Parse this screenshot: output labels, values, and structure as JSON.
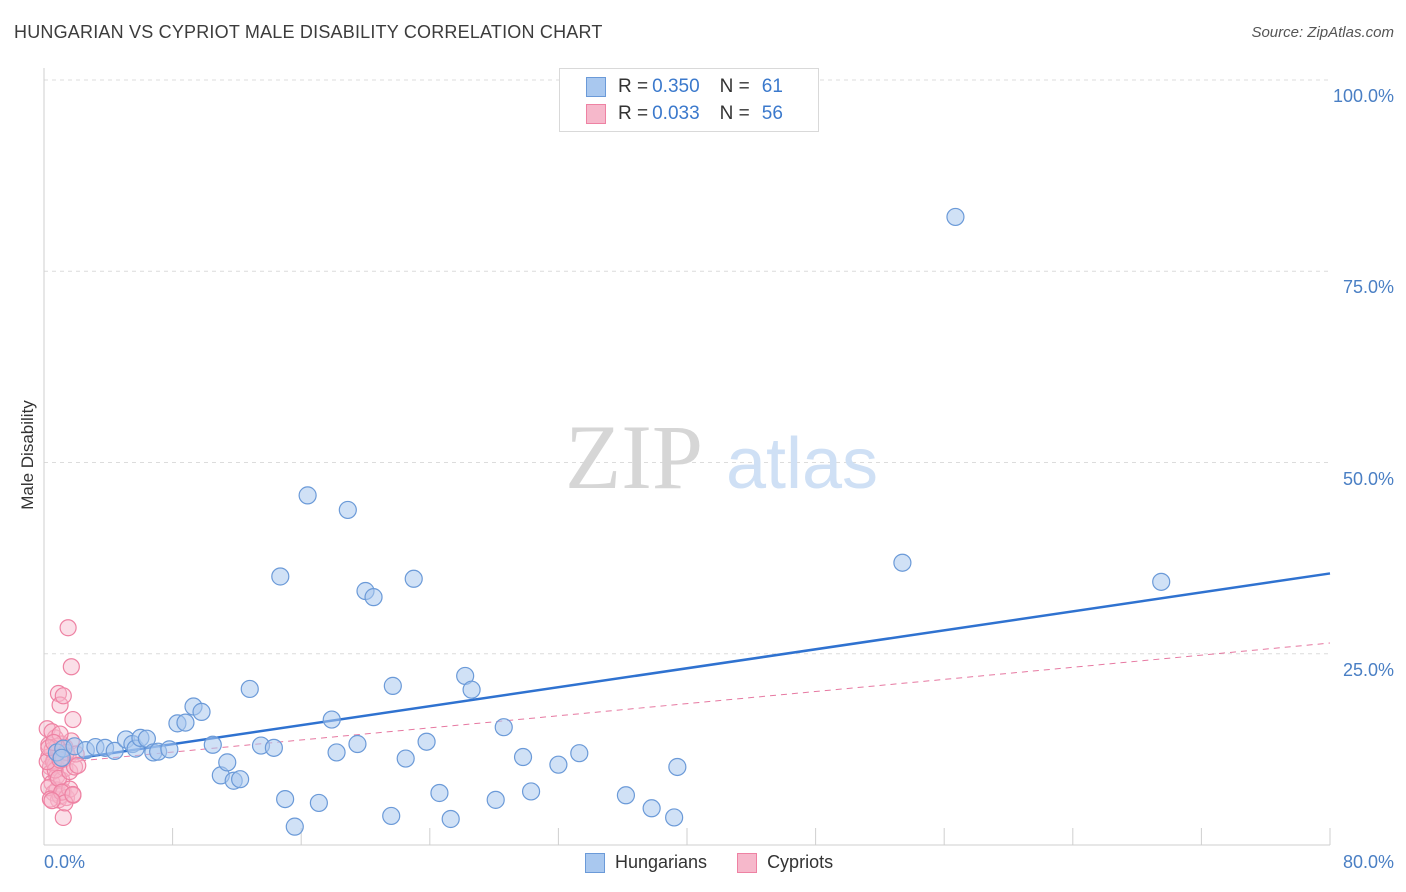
{
  "title": "HUNGARIAN VS CYPRIOT MALE DISABILITY CORRELATION CHART",
  "source": "Source: ZipAtlas.com",
  "watermark": {
    "zip": "ZIP",
    "atlas": "atlas"
  },
  "colors": {
    "blue_fill": "#a9c8ef",
    "blue_stroke": "#6b9ad8",
    "blue_line": "#2f72d0",
    "pink_fill": "#f6b8cb",
    "pink_stroke": "#ee82a3",
    "pink_line": "#e0578a",
    "axis_text": "#4a7fc4"
  },
  "legend": {
    "rows": [
      {
        "r_label": "R = ",
        "r_value": "0.350",
        "n_label": "N = ",
        "n_value": "61"
      },
      {
        "r_label": "R = ",
        "r_value": "0.033",
        "n_label": "N = ",
        "n_value": "56"
      }
    ]
  },
  "bottom_legend": [
    "Hungarians",
    "Cypriots"
  ],
  "chart_data": {
    "type": "scatter",
    "title": "HUNGARIAN VS CYPRIOT MALE DISABILITY CORRELATION CHART",
    "xlabel": "",
    "ylabel": "Male Disability",
    "xlim": [
      0,
      80
    ],
    "ylim": [
      0,
      100
    ],
    "x_tick_labels": [
      "0.0%",
      "80.0%"
    ],
    "y_tick_labels": [
      "100.0%",
      "75.0%",
      "50.0%",
      "25.0%"
    ],
    "y_tick_values": [
      100,
      75,
      50,
      25
    ],
    "grid": true,
    "legend_position": "top-center",
    "series": [
      {
        "name": "Hungarians",
        "r": 0.35,
        "n": 61,
        "trend": {
          "x": [
            0.3,
            80
          ],
          "y": [
            10.8,
            35.5
          ],
          "style": "solid"
        },
        "points": [
          [
            0.8,
            12.1
          ],
          [
            1.2,
            12.6
          ],
          [
            1.9,
            12.9
          ],
          [
            2.6,
            12.4
          ],
          [
            3.2,
            12.8
          ],
          [
            3.8,
            12.7
          ],
          [
            4.4,
            12.3
          ],
          [
            5.1,
            13.8
          ],
          [
            5.5,
            13.2
          ],
          [
            5.7,
            12.6
          ],
          [
            6.0,
            14.0
          ],
          [
            6.4,
            13.9
          ],
          [
            6.8,
            12.1
          ],
          [
            7.1,
            12.2
          ],
          [
            7.8,
            12.5
          ],
          [
            8.3,
            15.9
          ],
          [
            8.8,
            16.0
          ],
          [
            9.3,
            18.1
          ],
          [
            9.8,
            17.4
          ],
          [
            10.5,
            13.1
          ],
          [
            11.0,
            9.1
          ],
          [
            11.4,
            10.8
          ],
          [
            11.8,
            8.4
          ],
          [
            12.2,
            8.6
          ],
          [
            12.8,
            20.4
          ],
          [
            13.5,
            13.0
          ],
          [
            14.3,
            12.7
          ],
          [
            14.7,
            35.1
          ],
          [
            15.0,
            6.0
          ],
          [
            15.6,
            2.4
          ],
          [
            16.4,
            45.7
          ],
          [
            17.1,
            5.5
          ],
          [
            17.9,
            16.4
          ],
          [
            18.2,
            12.1
          ],
          [
            18.9,
            43.8
          ],
          [
            19.5,
            13.2
          ],
          [
            20.0,
            33.2
          ],
          [
            20.5,
            32.4
          ],
          [
            21.6,
            3.8
          ],
          [
            21.7,
            20.8
          ],
          [
            22.5,
            11.3
          ],
          [
            23.0,
            34.8
          ],
          [
            23.8,
            13.5
          ],
          [
            24.6,
            6.8
          ],
          [
            25.3,
            3.4
          ],
          [
            26.2,
            22.1
          ],
          [
            26.6,
            20.3
          ],
          [
            28.1,
            5.9
          ],
          [
            28.6,
            15.4
          ],
          [
            29.8,
            11.5
          ],
          [
            30.3,
            7.0
          ],
          [
            32.0,
            10.5
          ],
          [
            33.3,
            12.0
          ],
          [
            36.2,
            6.5
          ],
          [
            37.8,
            4.8
          ],
          [
            39.2,
            3.6
          ],
          [
            39.4,
            10.2
          ],
          [
            53.4,
            36.9
          ],
          [
            56.7,
            82.1
          ],
          [
            69.5,
            34.4
          ],
          [
            1.1,
            11.4
          ]
        ]
      },
      {
        "name": "Cypriots",
        "r": 0.033,
        "n": 56,
        "trend": {
          "x": [
            0.2,
            80
          ],
          "y": [
            10.6,
            26.4
          ],
          "style": "dashed"
        },
        "points": [
          [
            0.2,
            15.2
          ],
          [
            0.3,
            13.1
          ],
          [
            0.3,
            11.5
          ],
          [
            0.4,
            10.2
          ],
          [
            0.4,
            9.4
          ],
          [
            0.5,
            12.4
          ],
          [
            0.5,
            8.1
          ],
          [
            0.6,
            11.0
          ],
          [
            0.6,
            6.8
          ],
          [
            0.7,
            14.0
          ],
          [
            0.7,
            10.5
          ],
          [
            0.8,
            9.0
          ],
          [
            0.8,
            7.2
          ],
          [
            0.9,
            19.8
          ],
          [
            0.9,
            12.2
          ],
          [
            0.9,
            5.9
          ],
          [
            1.0,
            18.3
          ],
          [
            1.0,
            11.8
          ],
          [
            1.0,
            6.4
          ],
          [
            1.1,
            13.2
          ],
          [
            1.1,
            8.5
          ],
          [
            1.2,
            19.5
          ],
          [
            1.2,
            7.0
          ],
          [
            1.2,
            3.6
          ],
          [
            1.3,
            12.8
          ],
          [
            1.3,
            10.0
          ],
          [
            1.4,
            6.2
          ],
          [
            1.5,
            28.4
          ],
          [
            1.5,
            11.5
          ],
          [
            1.6,
            7.3
          ],
          [
            1.7,
            23.3
          ],
          [
            1.7,
            13.6
          ],
          [
            1.8,
            16.4
          ],
          [
            1.8,
            6.5
          ],
          [
            0.3,
            7.5
          ],
          [
            0.4,
            6.0
          ],
          [
            0.5,
            14.8
          ],
          [
            0.6,
            10.8
          ],
          [
            0.7,
            9.8
          ],
          [
            0.8,
            12.9
          ],
          [
            0.9,
            8.7
          ],
          [
            1.0,
            14.5
          ],
          [
            1.1,
            6.9
          ],
          [
            1.2,
            11.2
          ],
          [
            1.3,
            5.5
          ],
          [
            1.4,
            12.1
          ],
          [
            1.6,
            9.6
          ],
          [
            1.9,
            10.2
          ],
          [
            2.0,
            11.9
          ],
          [
            2.1,
            10.4
          ],
          [
            0.2,
            10.9
          ],
          [
            0.3,
            12.7
          ],
          [
            0.5,
            5.8
          ],
          [
            1.8,
            6.6
          ],
          [
            0.6,
            13.4
          ],
          [
            1.0,
            11.1
          ]
        ]
      }
    ]
  }
}
